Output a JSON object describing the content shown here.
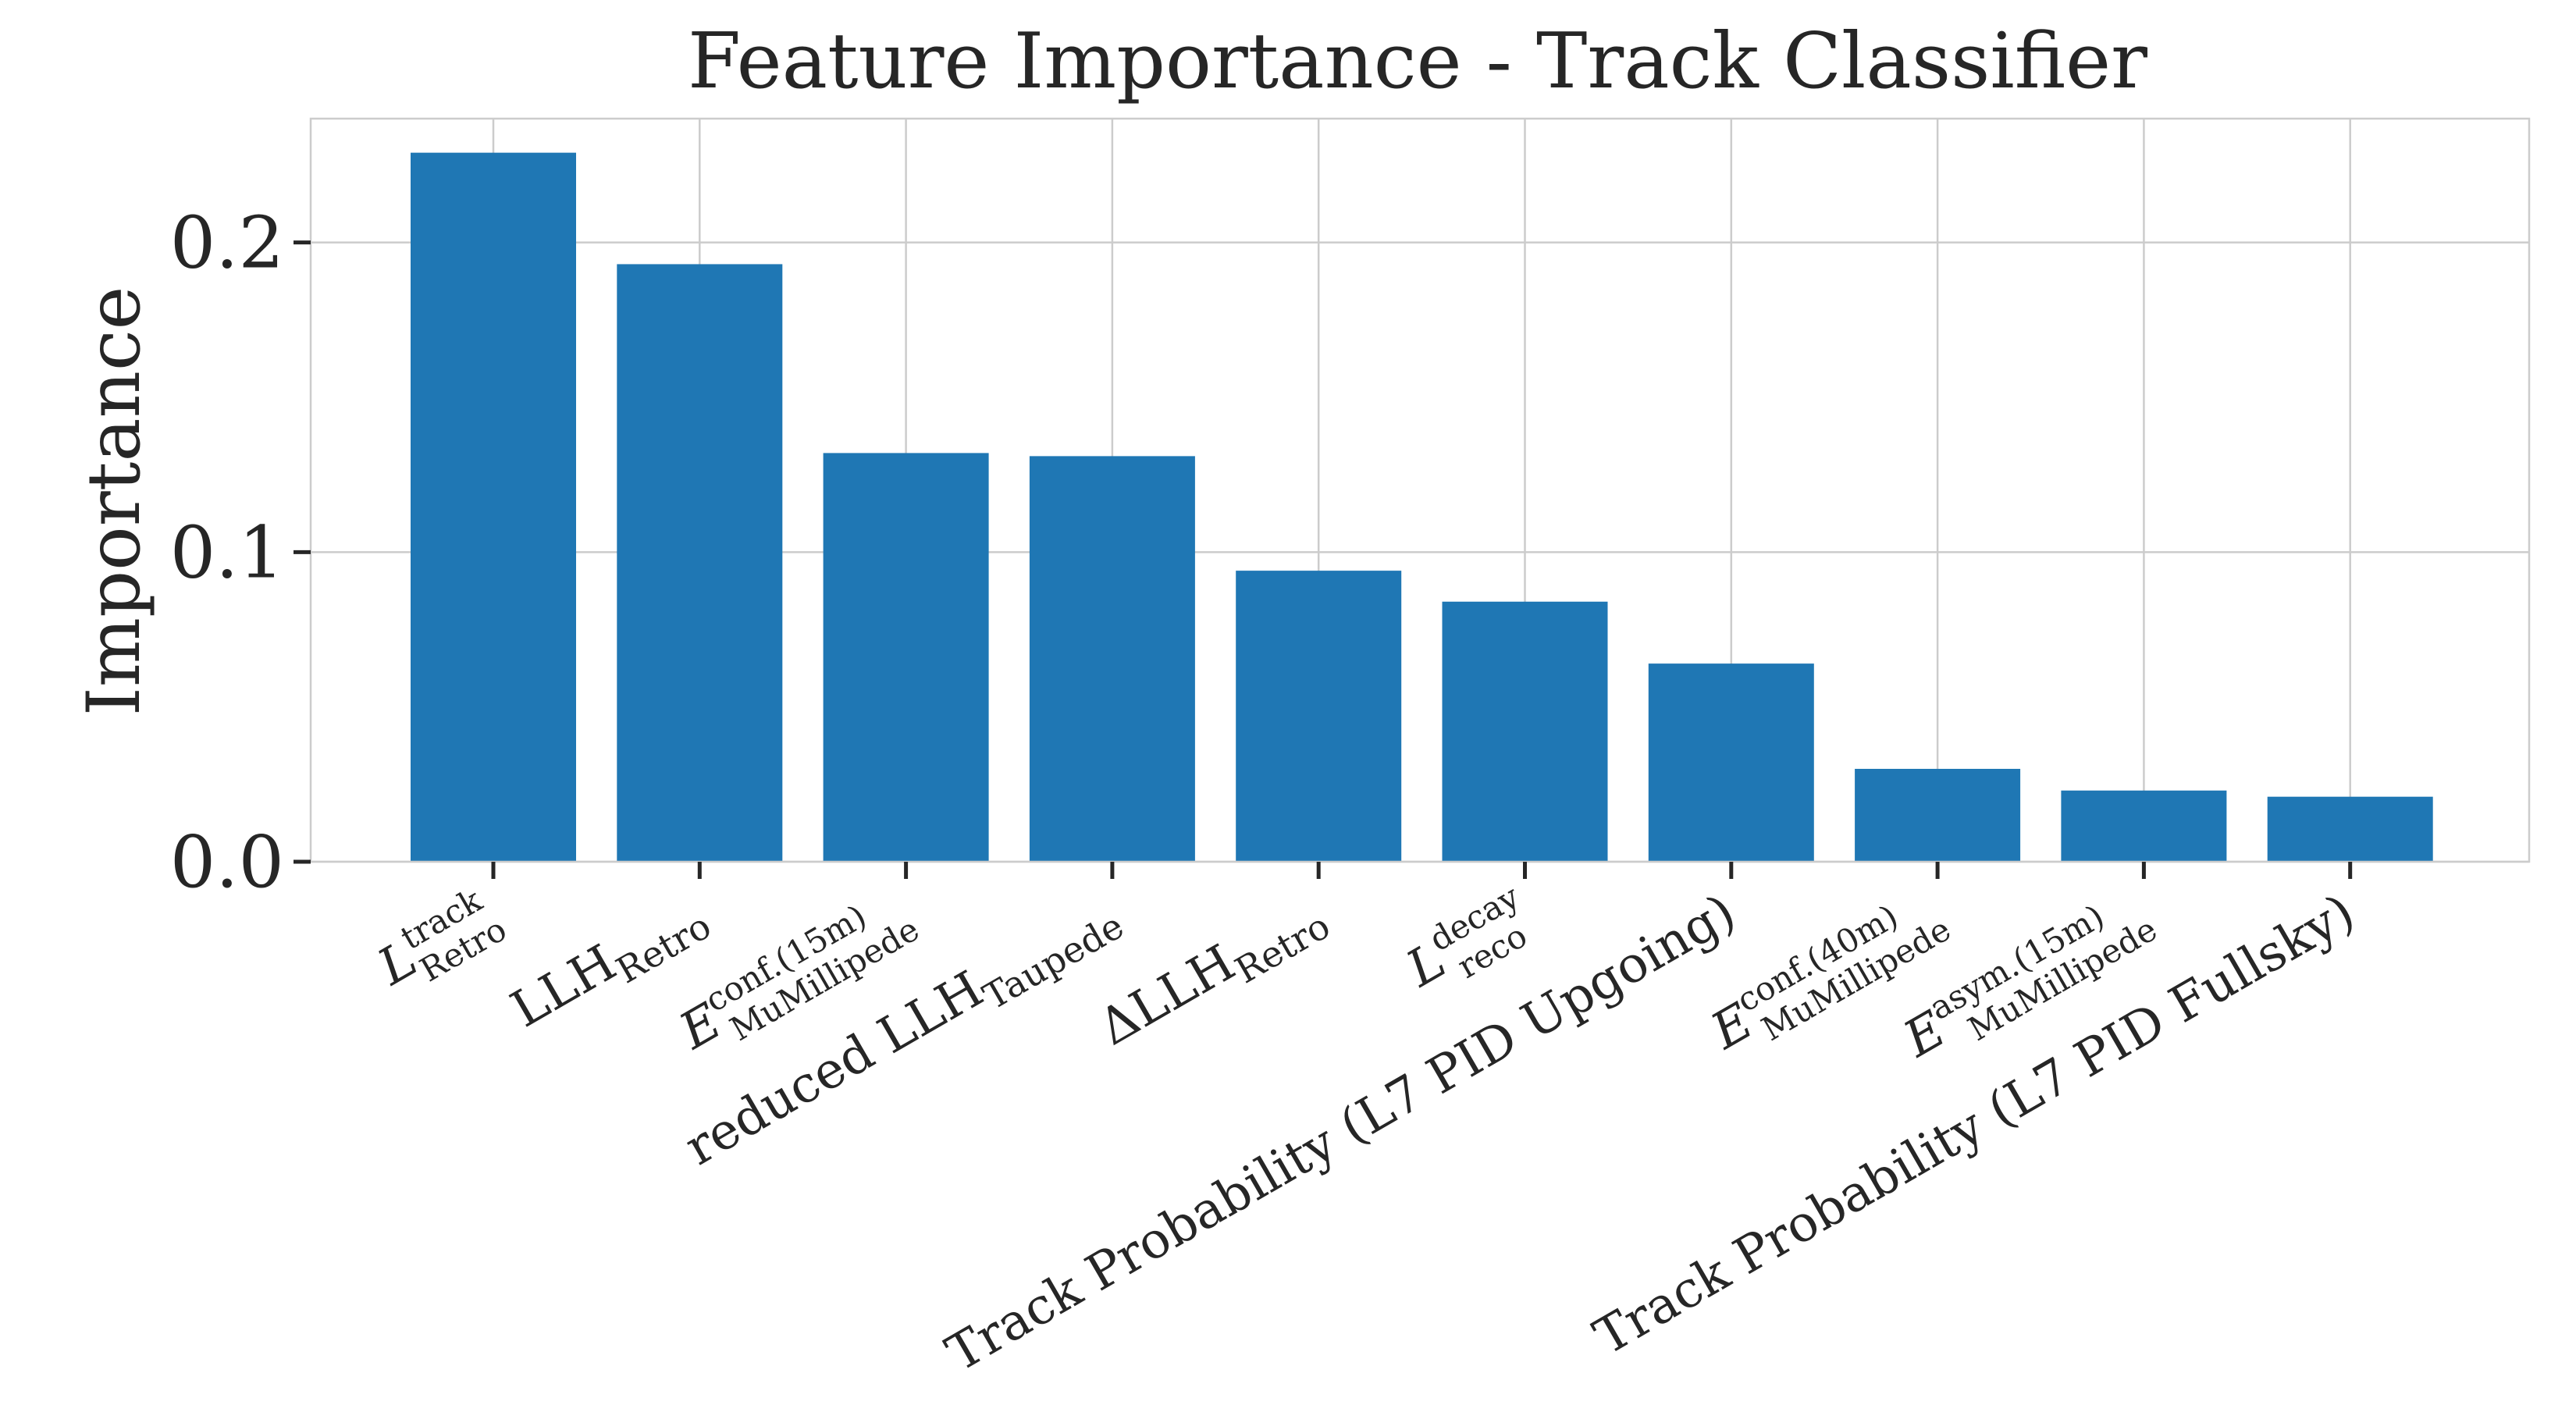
{
  "chart_data": {
    "type": "bar",
    "title": "Feature Importance - Track Classifier",
    "xlabel": "",
    "ylabel": "Importance",
    "ylim": [
      0,
      0.24
    ],
    "yticks": [
      "0.0",
      "0.1",
      "0.2"
    ],
    "ytick_values": [
      0,
      0.1,
      0.2
    ],
    "grid": true,
    "bar_color": "#1f77b4",
    "categories": [
      {
        "base": "L",
        "sup": "track",
        "sub": "Retro"
      },
      {
        "base": "LLH",
        "sup": "",
        "sub": "Retro"
      },
      {
        "base": "E",
        "sup": "conf.(15m)",
        "sub": "MuMillipede"
      },
      {
        "base": "reduced LLH",
        "sup": "",
        "sub": "Taupede"
      },
      {
        "base": "ΔLLH",
        "sup": "",
        "sub": "Retro"
      },
      {
        "base": "L",
        "sup": "decay",
        "sub": "reco"
      },
      {
        "base": "Track Probability (L7 PID Upgoing)",
        "sup": "",
        "sub": ""
      },
      {
        "base": "E",
        "sup": "conf.(40m)",
        "sub": "MuMillipede"
      },
      {
        "base": "E",
        "sup": "asym.(15m)",
        "sub": "MuMillipede"
      },
      {
        "base": "Track Probability (L7 PID Fullsky)",
        "sup": "",
        "sub": ""
      }
    ],
    "values": [
      0.229,
      0.193,
      0.132,
      0.131,
      0.094,
      0.084,
      0.064,
      0.03,
      0.023,
      0.021
    ]
  }
}
